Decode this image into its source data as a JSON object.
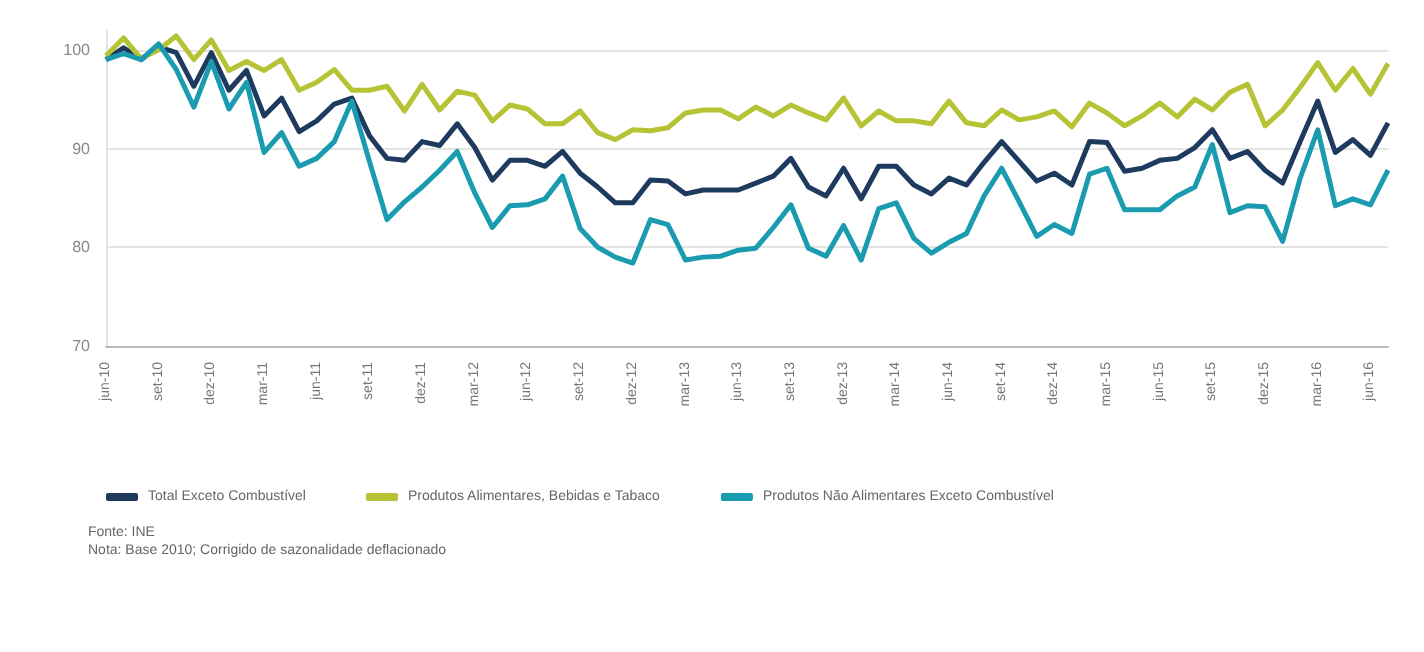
{
  "chart_data": {
    "type": "line",
    "categories": [
      "jun-10",
      null,
      null,
      "set-10",
      null,
      null,
      "dez-10",
      null,
      null,
      "mar-11",
      null,
      null,
      "jun-11",
      null,
      null,
      "set-11",
      null,
      null,
      "dez-11",
      null,
      null,
      "mar-12",
      null,
      null,
      "jun-12",
      null,
      null,
      "set-12",
      null,
      null,
      "dez-12",
      null,
      null,
      "mar-13",
      null,
      null,
      "jun-13",
      null,
      null,
      "set-13",
      null,
      null,
      "dez-13",
      null,
      null,
      "mar-14",
      null,
      null,
      "jun-14",
      null,
      null,
      "set-14",
      null,
      null,
      "dez-14",
      null,
      null,
      "mar-15",
      null,
      null,
      "jun-15",
      null,
      null,
      "set-15",
      null,
      null,
      "dez-15",
      null,
      null,
      "mar-16",
      null,
      null,
      "jun-16",
      null
    ],
    "series": [
      {
        "name": "Total Exceto Combustível",
        "color": "#1f3a5f",
        "values": [
          99.0,
          100.2,
          99.0,
          100.3,
          99.7,
          96.3,
          99.7,
          95.9,
          97.9,
          93.3,
          95.1,
          91.7,
          92.8,
          94.5,
          95.1,
          91.3,
          89.0,
          88.8,
          90.7,
          90.3,
          92.5,
          90.1,
          86.8,
          88.8,
          88.8,
          88.2,
          89.7,
          87.5,
          86.1,
          84.5,
          84.5,
          86.8,
          86.7,
          85.4,
          85.8,
          85.8,
          85.8,
          86.5,
          87.2,
          89.0,
          86.1,
          85.2,
          88.0,
          84.9,
          88.2,
          88.2,
          86.3,
          85.4,
          87.0,
          86.3,
          88.6,
          90.7,
          88.7,
          86.7,
          87.5,
          86.3,
          90.7,
          90.6,
          87.7,
          88.0,
          88.8,
          89.0,
          90.1,
          91.9,
          89.0,
          89.7,
          87.8,
          86.5,
          90.7,
          94.8,
          89.6,
          90.9,
          89.3,
          92.6
        ]
      },
      {
        "name": "Produtos Alimentares, Bebidas e Tabaco",
        "color": "#b5c334",
        "values": [
          99.4,
          101.2,
          99.1,
          100.0,
          101.4,
          99.0,
          101.0,
          97.9,
          98.8,
          97.9,
          99.0,
          95.9,
          96.7,
          98.0,
          95.9,
          95.9,
          96.3,
          93.8,
          96.5,
          93.9,
          95.8,
          95.4,
          92.8,
          94.4,
          94.0,
          92.5,
          92.5,
          93.8,
          91.6,
          90.9,
          91.9,
          91.8,
          92.1,
          93.6,
          93.9,
          93.9,
          93.0,
          94.2,
          93.3,
          94.4,
          93.6,
          92.9,
          95.1,
          92.3,
          93.8,
          92.8,
          92.8,
          92.5,
          94.8,
          92.6,
          92.3,
          93.9,
          92.9,
          93.2,
          93.8,
          92.2,
          94.6,
          93.6,
          92.3,
          93.3,
          94.6,
          93.2,
          95.0,
          93.9,
          95.7,
          96.5,
          92.3,
          93.9,
          96.2,
          98.7,
          95.9,
          98.1,
          95.5,
          98.6
        ]
      },
      {
        "name": "Produtos Não Alimentares Exceto Combustível",
        "color": "#1b9bb0",
        "values": [
          99.0,
          99.6,
          99.0,
          100.6,
          98.0,
          94.2,
          98.8,
          94.0,
          96.7,
          89.6,
          91.6,
          88.2,
          89.0,
          90.7,
          94.8,
          88.7,
          82.8,
          84.6,
          86.1,
          87.8,
          89.7,
          85.5,
          82.0,
          84.2,
          84.3,
          84.9,
          87.2,
          81.9,
          80.0,
          79.0,
          78.4,
          82.8,
          82.3,
          78.7,
          79.0,
          79.1,
          79.7,
          79.9,
          82.0,
          84.3,
          79.9,
          79.1,
          82.2,
          78.7,
          83.9,
          84.5,
          80.9,
          79.4,
          80.5,
          81.4,
          85.2,
          88.0,
          84.6,
          81.1,
          82.3,
          81.4,
          87.4,
          88.0,
          83.8,
          83.8,
          83.8,
          85.2,
          86.1,
          90.4,
          83.5,
          84.2,
          84.1,
          80.6,
          87.0,
          91.9,
          84.2,
          84.9,
          84.3,
          87.8
        ]
      }
    ],
    "ylim": [
      70,
      102
    ],
    "yticks": [
      70,
      80,
      90,
      100
    ],
    "grid": "y",
    "legend": "bottom left",
    "marker": "none",
    "line_style": "solid",
    "annotations": [
      "Fonte: INE",
      "Nota: Base 2010; Corrigido de sazonalidade deflacionado"
    ]
  }
}
